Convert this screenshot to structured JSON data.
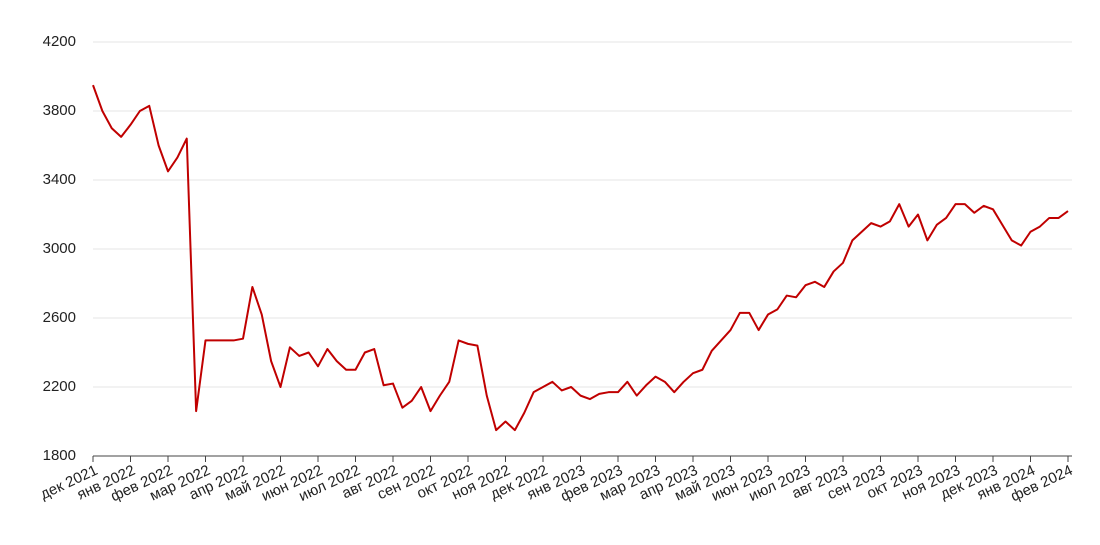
{
  "chart_data": {
    "type": "line",
    "categories": [
      "дек 2021",
      null,
      null,
      null,
      "янв 2022",
      null,
      null,
      null,
      "фев 2022",
      null,
      null,
      null,
      "мар 2022",
      null,
      null,
      null,
      "апр 2022",
      null,
      null,
      null,
      "май 2022",
      null,
      null,
      null,
      "июн 2022",
      null,
      null,
      null,
      "июл 2022",
      null,
      null,
      null,
      "авг 2022",
      null,
      null,
      null,
      "сен 2022",
      null,
      null,
      null,
      "окт 2022",
      null,
      null,
      null,
      "ноя 2022",
      null,
      null,
      null,
      "дек 2022",
      null,
      null,
      null,
      "янв 2023",
      null,
      null,
      null,
      "фев 2023",
      null,
      null,
      null,
      "мар 2023",
      null,
      null,
      null,
      "апр 2023",
      null,
      null,
      null,
      "май 2023",
      null,
      null,
      null,
      "июн 2023",
      null,
      null,
      null,
      "июл 2023",
      null,
      null,
      null,
      "авг 2023",
      null,
      null,
      null,
      "сен 2023",
      null,
      null,
      null,
      "окт 2023",
      null,
      null,
      null,
      "ноя 2023",
      null,
      null,
      null,
      "дек 2023",
      null,
      null,
      null,
      "янв 2024",
      null,
      null,
      null,
      "фев 2024"
    ],
    "series": [
      {
        "color": "#c00000",
        "values": [
          3950,
          3800,
          3700,
          3650,
          3720,
          3800,
          3830,
          3600,
          3450,
          3530,
          3640,
          2060,
          2470,
          2470,
          2470,
          2470,
          2480,
          2780,
          2620,
          2350,
          2200,
          2430,
          2380,
          2400,
          2320,
          2420,
          2350,
          2300,
          2300,
          2400,
          2420,
          2210,
          2220,
          2080,
          2120,
          2200,
          2060,
          2150,
          2230,
          2470,
          2450,
          2440,
          2150,
          1950,
          2000,
          1950,
          2050,
          2170,
          2200,
          2230,
          2180,
          2200,
          2150,
          2130,
          2160,
          2170,
          2170,
          2230,
          2150,
          2210,
          2260,
          2230,
          2170,
          2230,
          2280,
          2300,
          2410,
          2470,
          2530,
          2630,
          2630,
          2530,
          2620,
          2650,
          2730,
          2720,
          2790,
          2810,
          2780,
          2870,
          2920,
          3050,
          3100,
          3150,
          3130,
          3160,
          3260,
          3130,
          3200,
          3050,
          3140,
          3180,
          3260,
          3260,
          3210,
          3250,
          3230,
          3140,
          3050,
          3020,
          3100,
          3130,
          3180,
          3180,
          3220
        ]
      }
    ],
    "ylim": [
      1800,
      4200
    ],
    "yticks": [
      1800,
      2200,
      2600,
      3000,
      3400,
      3800,
      4200
    ],
    "grid": true
  }
}
